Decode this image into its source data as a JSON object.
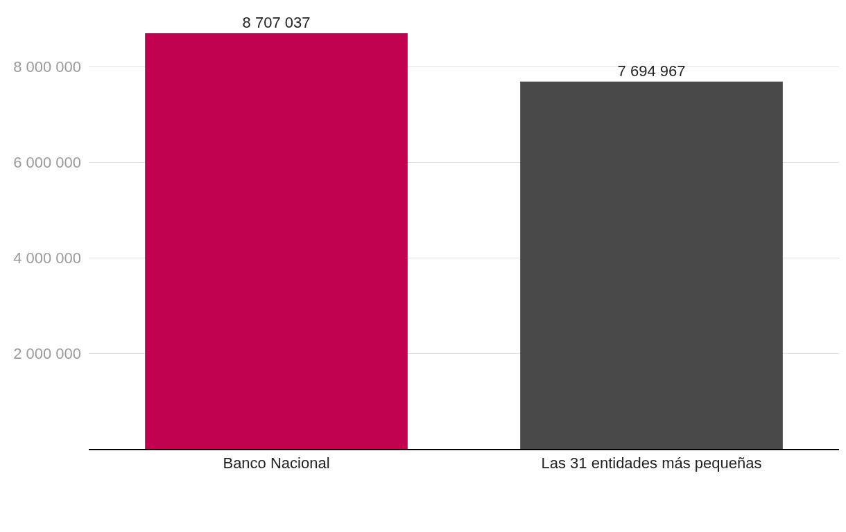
{
  "chart_data": {
    "type": "bar",
    "categories": [
      "Banco Nacional",
      "Las 31 entidades más pequeñas"
    ],
    "values": [
      8707037,
      7694967
    ],
    "colors": [
      "#c20251",
      "#494949"
    ],
    "value_labels": [
      "8 707 037",
      "7 694 967"
    ],
    "ylim": [
      0,
      8707037
    ],
    "yticks": [
      {
        "value": 2000000,
        "label": "2 000 000"
      },
      {
        "value": 4000000,
        "label": "4 000 000"
      },
      {
        "value": 6000000,
        "label": "6 000 000"
      },
      {
        "value": 8000000,
        "label": "8 000 000"
      }
    ],
    "grid": "y"
  }
}
